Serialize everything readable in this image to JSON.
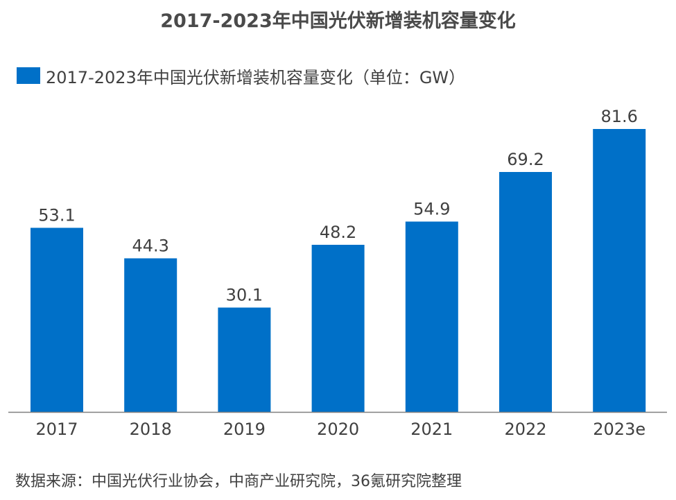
{
  "chart_data": {
    "type": "bar",
    "title": "2017-2023年中国光伏新增装机容量变化",
    "legend": {
      "position": "top-left",
      "entries": [
        "2017-2023年中国光伏新增装机容量变化（单位：GW）"
      ]
    },
    "categories": [
      "2017",
      "2018",
      "2019",
      "2020",
      "2021",
      "2022",
      "2023e"
    ],
    "series": [
      {
        "name": "2017-2023年中国光伏新增装机容量变化（单位：GW）",
        "values": [
          53.1,
          44.3,
          30.1,
          48.2,
          54.9,
          69.2,
          81.6
        ],
        "color": "#0070c8"
      }
    ],
    "ylim": [
      0,
      81.6
    ],
    "grid": false,
    "data_labels": [
      "53.1",
      "44.3",
      "30.1",
      "48.2",
      "54.9",
      "69.2",
      "81.6"
    ]
  },
  "footer": {
    "source": "数据来源：中国光伏行业协会，中商产业研究院，36氪研究院整理"
  }
}
